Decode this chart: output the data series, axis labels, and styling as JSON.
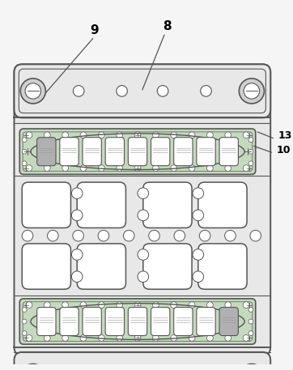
{
  "fig_width": 3.62,
  "fig_height": 4.57,
  "bg_color": "#f5f5f5",
  "board_color": "#e8e8e8",
  "lc": "#555555",
  "green_color": "#c5d9be",
  "white": "#ffffff",
  "gray_comp": "#b0b0b0",
  "lw_main": 1.4,
  "lw_thin": 0.8,
  "lw_micro": 0.5
}
